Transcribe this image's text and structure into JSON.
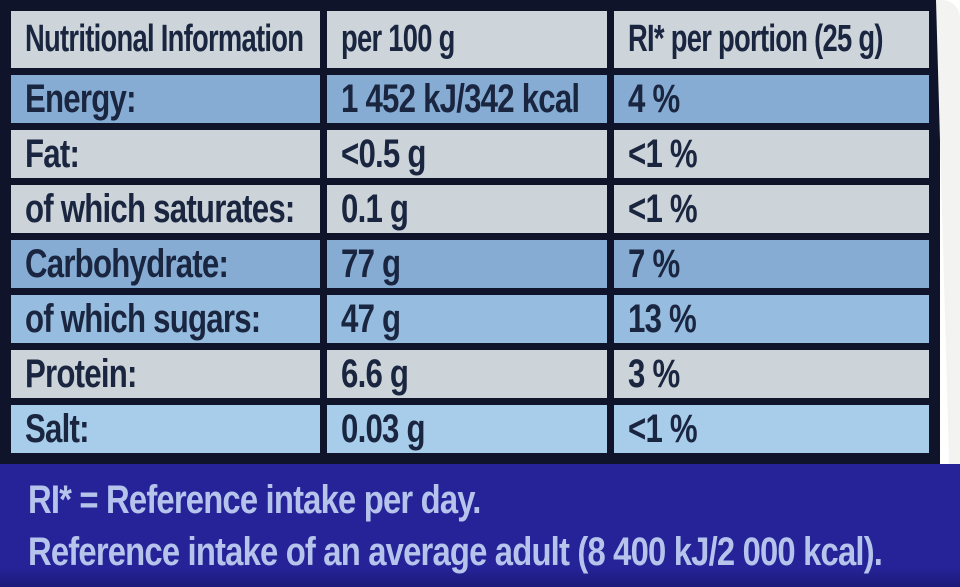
{
  "colors": {
    "border": "#10142b",
    "header_bg": "#cdd5da",
    "gray_row": "#ccd4d9",
    "blue_row": "#86acd4",
    "blue_row_light": "#96bce0",
    "blue_row_lighter": "#a7cdeb",
    "text": "#1a2540",
    "footer_bg": "#262399",
    "footer_text": "#b6c4ec",
    "photo_edge": "#f3f4f1"
  },
  "table": {
    "header": [
      "Nutritional Information",
      "per 100 g",
      "RI* per portion (25 g)"
    ],
    "rows": [
      {
        "key": "energy",
        "label": "Energy:",
        "per100": "1 452 kJ/342 kcal",
        "ri": "4 %",
        "tone": "blue"
      },
      {
        "key": "fat",
        "label": "Fat:",
        "per100": "<0.5 g",
        "ri": "<1 %",
        "tone": "gray"
      },
      {
        "key": "saturates",
        "label": "of which saturates:",
        "per100": "0.1 g",
        "ri": "<1 %",
        "tone": "gray"
      },
      {
        "key": "carbohydrate",
        "label": "Carbohydrate:",
        "per100": "77 g",
        "ri": "7 %",
        "tone": "blue"
      },
      {
        "key": "sugars",
        "label": "of which sugars:",
        "per100": "47 g",
        "ri": "13 %",
        "tone": "blue_light"
      },
      {
        "key": "protein",
        "label": "Protein:",
        "per100": "6.6 g",
        "ri": "3 %",
        "tone": "gray"
      },
      {
        "key": "salt",
        "label": "Salt:",
        "per100": "0.03 g",
        "ri": "<1 %",
        "tone": "blue_lighter"
      }
    ]
  },
  "footnote": {
    "line1": "RI* = Reference intake per day.",
    "line2": "Reference intake of an average adult (8 400 kJ/2 000 kcal)."
  }
}
